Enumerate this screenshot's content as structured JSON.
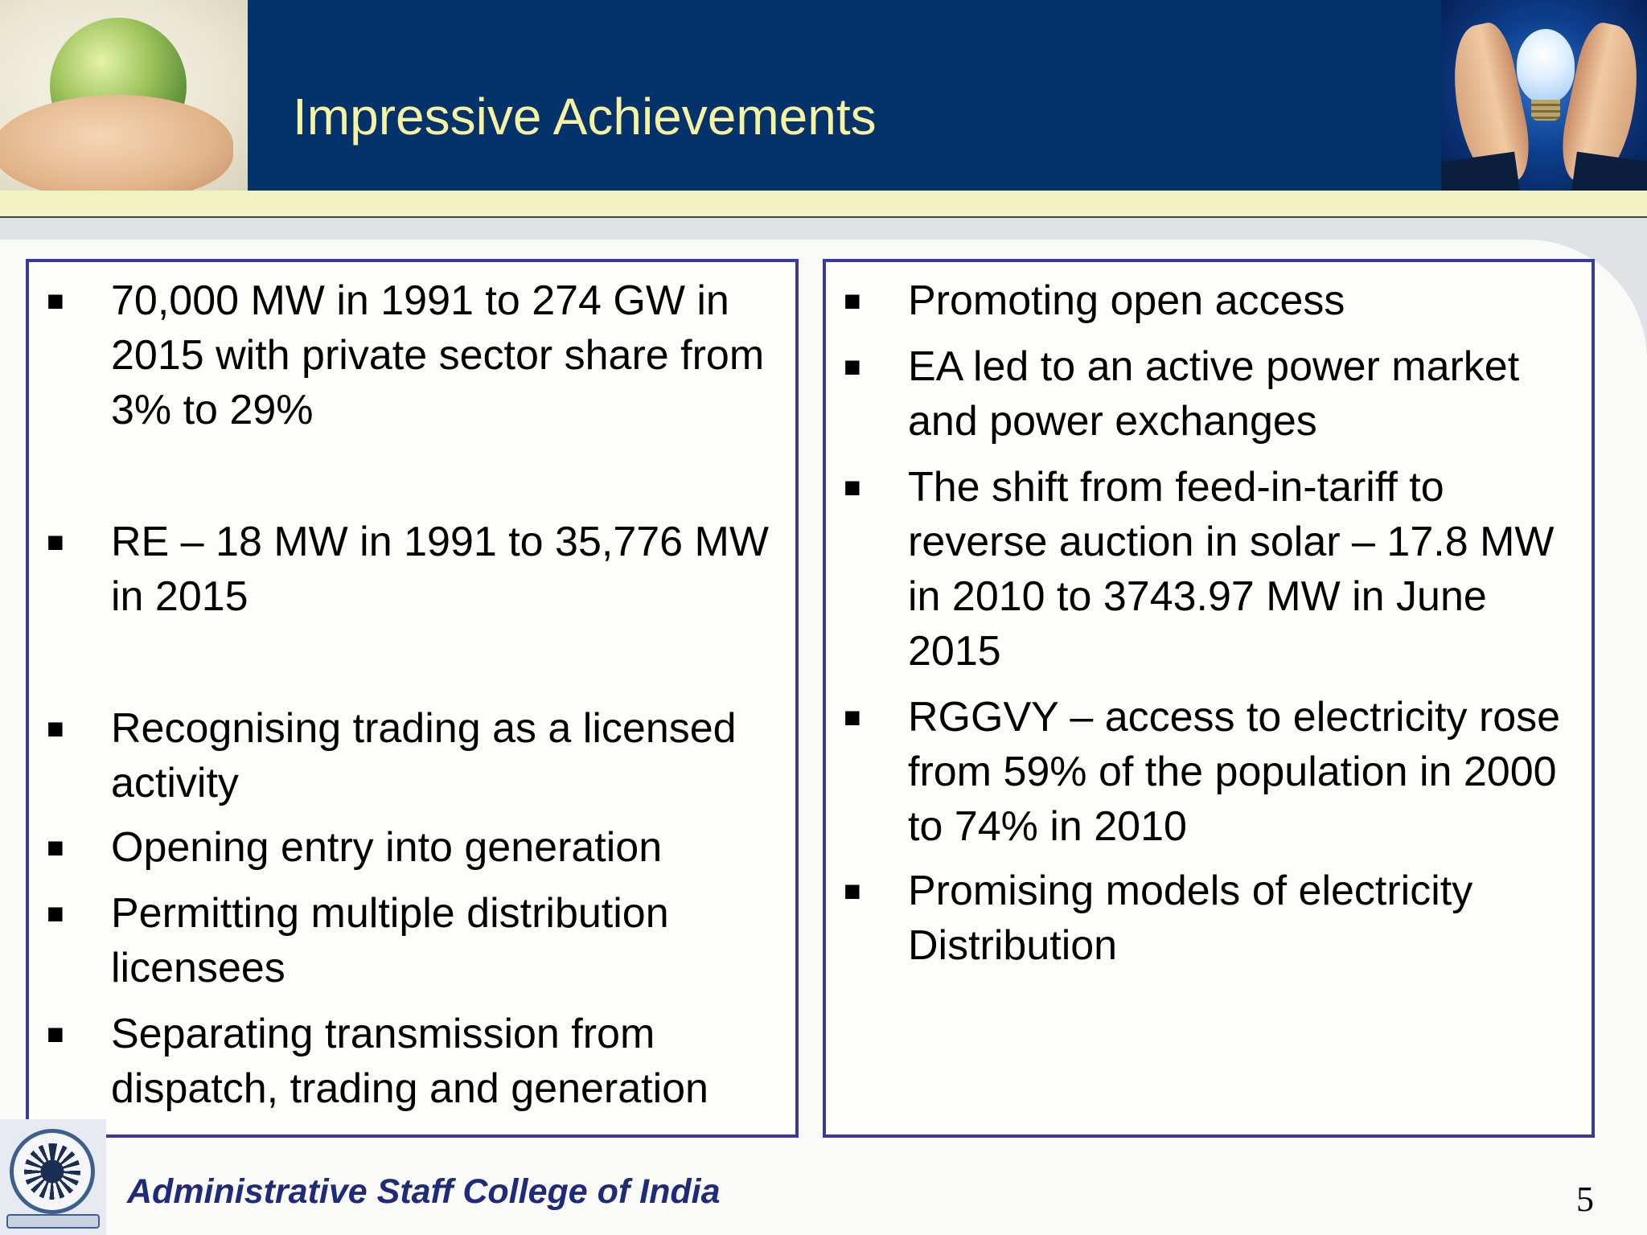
{
  "slide": {
    "title": "Impressive Achievements",
    "footer": "Administrative Staff College of India",
    "page_number": "5"
  },
  "left_column": {
    "bullets": [
      "70,000 MW in 1991 to 274 GW in 2015 with private sector share from 3% to 29%",
      "RE – 18 MW in 1991 to 35,776 MW in 2015",
      "Recognising trading as a licensed activity",
      "Opening entry into generation",
      "Permitting multiple distribution licensees",
      "Separating transmission from dispatch, trading and generation"
    ]
  },
  "right_column": {
    "bullets": [
      "Promoting open access",
      "EA led to an active power market and power exchanges",
      "The shift from feed-in-tariff to reverse auction in solar – 17.8 MW in 2010 to 3743.97 MW in June 2015",
      "RGGVY – access to electricity rose from 59% of the population in 2000 to 74% in 2010",
      "Promising models of electricity Distribution"
    ]
  },
  "bullet_marker": "■",
  "colors": {
    "header_band": "#04336b",
    "title_text": "#f6f3a1",
    "box_border": "#3a3a9c",
    "footer_text": "#1f2a7a"
  }
}
